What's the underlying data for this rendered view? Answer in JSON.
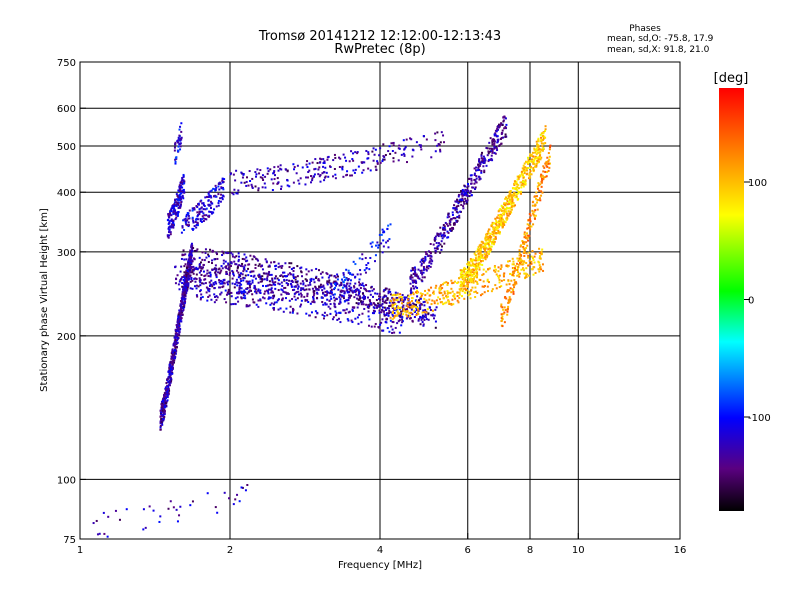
{
  "chart_data": {
    "type": "scatter",
    "title": "Tromsø 20141212 12:12:00-12:13:43",
    "subtitle": "RwPretec (8p)",
    "xlabel": "Frequency [MHz]",
    "ylabel": "Stationary phase Virtual Height [km]",
    "x_scale": "log",
    "y_scale": "log",
    "xlim": [
      1,
      16
    ],
    "ylim": [
      75,
      750
    ],
    "grid": true,
    "x_ticks": [
      {
        "value": 1,
        "label": "1"
      },
      {
        "value": 2,
        "label": "2"
      },
      {
        "value": 4,
        "label": "4"
      },
      {
        "value": 6,
        "label": "6"
      },
      {
        "value": 8,
        "label": "8"
      },
      {
        "value": 10,
        "label": "10"
      },
      {
        "value": 16,
        "label": "16"
      }
    ],
    "x_grid_values": [
      2,
      4,
      6,
      8,
      10
    ],
    "y_ticks": [
      {
        "value": 75,
        "label": "75"
      },
      {
        "value": 100,
        "label": "100"
      },
      {
        "value": 200,
        "label": "200"
      },
      {
        "value": 300,
        "label": "300"
      },
      {
        "value": 400,
        "label": "400"
      },
      {
        "value": 500,
        "label": "500"
      },
      {
        "value": 600,
        "label": "600"
      },
      {
        "value": 750,
        "label": "750"
      }
    ],
    "y_grid_values": [
      100,
      200,
      300,
      400,
      500,
      600
    ],
    "phase_stats": {
      "title": "Phases",
      "line_o": "mean, sd,O: -75.8, 17.9",
      "line_x": "mean, sd,X:  91.8, 21.0"
    },
    "colorbar": {
      "label": "[deg]",
      "range": [
        -180,
        180
      ],
      "tick_values": [
        100,
        0,
        -100
      ],
      "tick_labels": [
        "100",
        "0",
        "-100"
      ]
    },
    "traces": [
      {
        "x_range": [
          1.45,
          1.68
        ],
        "height_range": [
          135,
          300
        ],
        "phase": -130,
        "count": 650
      },
      {
        "x_range": [
          1.5,
          1.62
        ],
        "height_range": [
          340,
          420
        ],
        "phase": -120,
        "count": 180
      },
      {
        "x_range": [
          1.6,
          1.95
        ],
        "height_range": [
          340,
          410
        ],
        "phase": -115,
        "count": 160
      },
      {
        "x_range": [
          1.55,
          1.6
        ],
        "height_range": [
          480,
          540
        ],
        "phase": -110,
        "count": 40
      },
      {
        "x_range": [
          1.6,
          5.2
        ],
        "height_range": [
          290,
          218
        ],
        "phase": -135,
        "count": 520
      },
      {
        "x_range": [
          1.55,
          4.9
        ],
        "height_range": [
          265,
          228
        ],
        "phase": -128,
        "count": 420
      },
      {
        "x_range": [
          1.7,
          4.5
        ],
        "height_range": [
          250,
          212
        ],
        "phase": -122,
        "count": 300
      },
      {
        "x_range": [
          2.0,
          5.4
        ],
        "height_range": [
          420,
          510
        ],
        "phase": -130,
        "count": 260
      },
      {
        "x_range": [
          3.2,
          4.2
        ],
        "height_range": [
          250,
          330
        ],
        "phase": -105,
        "count": 80
      },
      {
        "x_range": [
          4.2,
          8.5
        ],
        "height_range": [
          230,
          290
        ],
        "phase": 105,
        "count": 380
      },
      {
        "x_range": [
          5.8,
          8.6
        ],
        "height_range": [
          260,
          520
        ],
        "phase": 95,
        "count": 650
      },
      {
        "x_range": [
          4.6,
          7.2
        ],
        "height_range": [
          260,
          560
        ],
        "phase": -130,
        "count": 420
      },
      {
        "x_range": [
          7.0,
          8.8
        ],
        "height_range": [
          220,
          480
        ],
        "phase": 120,
        "count": 200
      },
      {
        "x_range": [
          1.05,
          2.4
        ],
        "height_range": [
          80,
          97
        ],
        "phase": -125,
        "count": 40
      }
    ]
  }
}
